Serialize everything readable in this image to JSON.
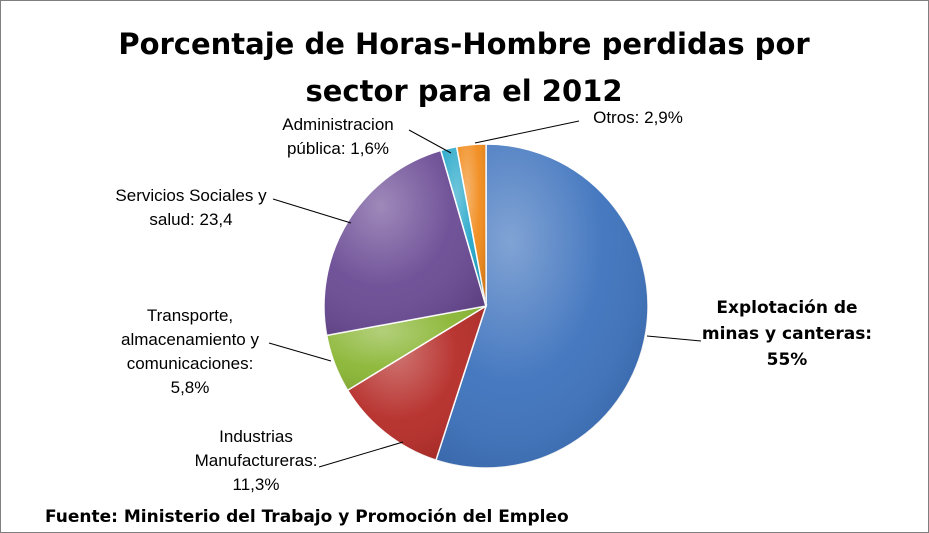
{
  "chart_data": {
    "type": "pie",
    "title_lines": [
      "Porcentaje de Horas-Hombre perdidas por",
      "sector para el 2012"
    ],
    "source": "Fuente: Ministerio del Trabajo  y Promoción del Empleo",
    "slices": [
      {
        "label_lines": [
          "Explotación de",
          "minas y canteras:",
          "55%"
        ],
        "value": 55,
        "color": "#3d72bd",
        "bold": true
      },
      {
        "label_lines": [
          "Industrias",
          "Manufactureras:",
          "11,3%"
        ],
        "value": 11.3,
        "color": "#b52b27",
        "bold": false
      },
      {
        "label_lines": [
          "Transporte,",
          "almacenamiento y",
          "comunicaciones:",
          "5,8%"
        ],
        "value": 5.8,
        "color": "#8ab634",
        "bold": false
      },
      {
        "label_lines": [
          "Servicios Sociales y",
          "salud: 23,4"
        ],
        "value": 23.4,
        "color": "#6a4a94",
        "bold": false
      },
      {
        "label_lines": [
          "Administracion",
          "pública: 1,6%"
        ],
        "value": 1.6,
        "color": "#23a6c8",
        "bold": false
      },
      {
        "label_lines": [
          "Otros: 2,9%"
        ],
        "value": 2.9,
        "color": "#f18b1c",
        "bold": false
      }
    ]
  }
}
